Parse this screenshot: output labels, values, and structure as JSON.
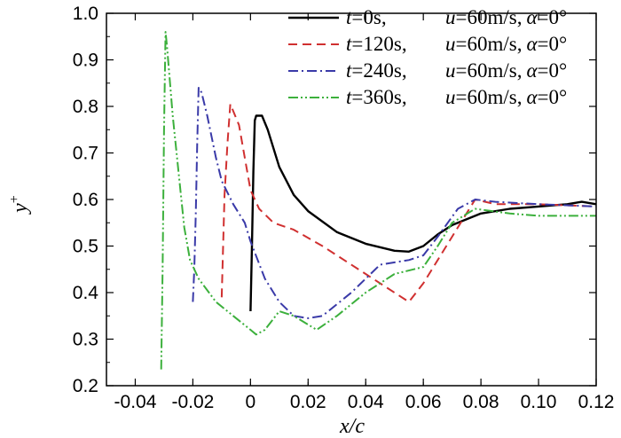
{
  "chart_data": {
    "type": "line",
    "title": "",
    "xlabel": "x/c",
    "ylabel": "y+",
    "xlim": [
      -0.05,
      0.12
    ],
    "ylim": [
      0.2,
      1.0
    ],
    "grid": false,
    "legend_position": "top-right",
    "x_ticks": [
      -0.04,
      -0.02,
      0,
      0.02,
      0.04,
      0.06,
      0.08,
      0.1,
      0.12
    ],
    "x_tick_labels": [
      "-0.04",
      "-0.02",
      "0",
      "0.02",
      "0.04",
      "0.06",
      "0.08",
      "0.10",
      "0.12"
    ],
    "y_ticks": [
      0.2,
      0.3,
      0.4,
      0.5,
      0.6,
      0.7,
      0.8,
      0.9,
      1.0
    ],
    "y_tick_labels": [
      "0.2",
      "0.3",
      "0.4",
      "0.5",
      "0.6",
      "0.7",
      "0.8",
      "0.9",
      "1.0"
    ],
    "series": [
      {
        "name": "t=0s, u=60m/s, α=0°",
        "legend_t": "=0s,",
        "legend_rest": "=60m/s,",
        "legend_alpha": "=0°",
        "color": "#000000",
        "dash": "solid",
        "points": [
          [
            0.0,
            0.36
          ],
          [
            0.0005,
            0.5
          ],
          [
            0.001,
            0.66
          ],
          [
            0.0015,
            0.77
          ],
          [
            0.002,
            0.78
          ],
          [
            0.004,
            0.78
          ],
          [
            0.006,
            0.75
          ],
          [
            0.01,
            0.67
          ],
          [
            0.015,
            0.61
          ],
          [
            0.02,
            0.575
          ],
          [
            0.03,
            0.53
          ],
          [
            0.04,
            0.505
          ],
          [
            0.05,
            0.49
          ],
          [
            0.055,
            0.488
          ],
          [
            0.06,
            0.5
          ],
          [
            0.065,
            0.525
          ],
          [
            0.07,
            0.545
          ],
          [
            0.08,
            0.57
          ],
          [
            0.09,
            0.58
          ],
          [
            0.1,
            0.585
          ],
          [
            0.11,
            0.59
          ],
          [
            0.115,
            0.595
          ],
          [
            0.12,
            0.59
          ]
        ]
      },
      {
        "name": "t=120s, u=60m/s, α=0°",
        "legend_t": "=120s,",
        "legend_rest": "=60m/s,",
        "legend_alpha": "=0°",
        "color": "#d03030",
        "dash": "dashed",
        "points": [
          [
            -0.01,
            0.39
          ],
          [
            -0.0095,
            0.5
          ],
          [
            -0.009,
            0.61
          ],
          [
            -0.008,
            0.72
          ],
          [
            -0.007,
            0.805
          ],
          [
            -0.006,
            0.79
          ],
          [
            -0.004,
            0.76
          ],
          [
            -0.002,
            0.69
          ],
          [
            0.0,
            0.62
          ],
          [
            0.003,
            0.58
          ],
          [
            0.008,
            0.55
          ],
          [
            0.015,
            0.535
          ],
          [
            0.025,
            0.5
          ],
          [
            0.04,
            0.44
          ],
          [
            0.05,
            0.4
          ],
          [
            0.055,
            0.38
          ],
          [
            0.06,
            0.42
          ],
          [
            0.065,
            0.47
          ],
          [
            0.07,
            0.52
          ],
          [
            0.078,
            0.6
          ],
          [
            0.085,
            0.59
          ],
          [
            0.1,
            0.59
          ],
          [
            0.12,
            0.585
          ]
        ]
      },
      {
        "name": "t=240s, u=60m/s, α=0°",
        "legend_t": "=240s,",
        "legend_rest": "=60m/s,",
        "legend_alpha": "=0°",
        "color": "#3a3aa8",
        "dash": "dashdot",
        "points": [
          [
            -0.02,
            0.38
          ],
          [
            -0.0195,
            0.45
          ],
          [
            -0.019,
            0.57
          ],
          [
            -0.0185,
            0.72
          ],
          [
            -0.018,
            0.84
          ],
          [
            -0.017,
            0.83
          ],
          [
            -0.015,
            0.78
          ],
          [
            -0.012,
            0.69
          ],
          [
            -0.01,
            0.64
          ],
          [
            -0.006,
            0.59
          ],
          [
            -0.002,
            0.55
          ],
          [
            0.0,
            0.51
          ],
          [
            0.005,
            0.43
          ],
          [
            0.01,
            0.38
          ],
          [
            0.015,
            0.35
          ],
          [
            0.02,
            0.345
          ],
          [
            0.025,
            0.35
          ],
          [
            0.035,
            0.4
          ],
          [
            0.045,
            0.46
          ],
          [
            0.055,
            0.47
          ],
          [
            0.06,
            0.48
          ],
          [
            0.065,
            0.52
          ],
          [
            0.072,
            0.58
          ],
          [
            0.078,
            0.6
          ],
          [
            0.085,
            0.595
          ],
          [
            0.1,
            0.59
          ],
          [
            0.12,
            0.585
          ]
        ]
      },
      {
        "name": "t=360s, u=60m/s, α=0°",
        "legend_t": "=360s,",
        "legend_rest": "=60m/s,",
        "legend_alpha": "=0°",
        "color": "#3cb03c",
        "dash": "dashdotdot",
        "points": [
          [
            -0.031,
            0.235
          ],
          [
            -0.0305,
            0.45
          ],
          [
            -0.03,
            0.75
          ],
          [
            -0.0295,
            0.96
          ],
          [
            -0.029,
            0.93
          ],
          [
            -0.027,
            0.78
          ],
          [
            -0.025,
            0.66
          ],
          [
            -0.023,
            0.54
          ],
          [
            -0.021,
            0.47
          ],
          [
            -0.018,
            0.43
          ],
          [
            -0.012,
            0.38
          ],
          [
            -0.006,
            0.35
          ],
          [
            0.0,
            0.32
          ],
          [
            0.002,
            0.31
          ],
          [
            0.005,
            0.32
          ],
          [
            0.01,
            0.36
          ],
          [
            0.015,
            0.35
          ],
          [
            0.023,
            0.32
          ],
          [
            0.03,
            0.35
          ],
          [
            0.04,
            0.4
          ],
          [
            0.05,
            0.44
          ],
          [
            0.06,
            0.455
          ],
          [
            0.065,
            0.5
          ],
          [
            0.07,
            0.55
          ],
          [
            0.078,
            0.58
          ],
          [
            0.09,
            0.57
          ],
          [
            0.1,
            0.565
          ],
          [
            0.12,
            0.565
          ]
        ]
      }
    ]
  }
}
